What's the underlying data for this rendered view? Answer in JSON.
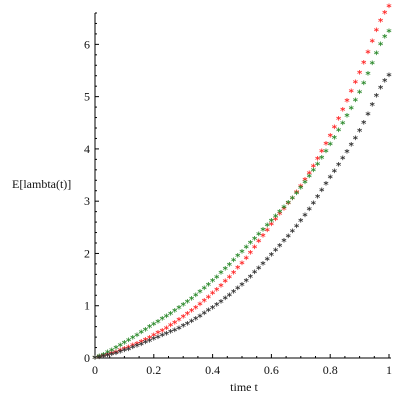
{
  "chart_data": {
    "type": "scatter",
    "title": "",
    "xlabel": "time t",
    "ylabel": "E[lambta(t)]",
    "xlim": [
      0,
      1
    ],
    "ylim": [
      0,
      6.6
    ],
    "x_ticks": [
      0,
      0.2,
      0.4,
      0.6,
      0.8,
      1
    ],
    "x_tick_labels": [
      "0",
      "0.2",
      "0.4",
      "0.6",
      "0.8",
      "1"
    ],
    "y_ticks": [
      0,
      1,
      2,
      3,
      4,
      5,
      6
    ],
    "y_tick_labels": [
      "0",
      "1",
      "2",
      "3",
      "4",
      "5",
      "6"
    ],
    "grid": false,
    "legend": "none",
    "marker_symbol": "*",
    "series": [
      {
        "color": "#ff2a2a",
        "x": [
          0,
          0.1,
          0.2,
          0.3,
          0.4,
          0.5,
          0.6,
          0.7,
          0.8,
          0.9,
          1.0
        ],
        "values": [
          0,
          0.17,
          0.43,
          0.78,
          1.23,
          1.81,
          2.55,
          3.28,
          4.25,
          5.45,
          6.72
        ]
      },
      {
        "color": "#2e8b2e",
        "x": [
          0,
          0.1,
          0.2,
          0.3,
          0.4,
          0.5,
          0.6,
          0.7,
          0.8,
          0.9,
          1.0
        ],
        "values": [
          0,
          0.29,
          0.64,
          1.01,
          1.47,
          2.03,
          2.62,
          3.25,
          4.08,
          5.08,
          6.25
        ]
      },
      {
        "color": "#333333",
        "x": [
          0,
          0.1,
          0.2,
          0.3,
          0.4,
          0.5,
          0.6,
          0.7,
          0.8,
          0.9,
          1.0
        ],
        "values": [
          0,
          0.14,
          0.36,
          0.61,
          0.96,
          1.4,
          1.97,
          2.62,
          3.45,
          4.34,
          5.4
        ]
      }
    ]
  }
}
